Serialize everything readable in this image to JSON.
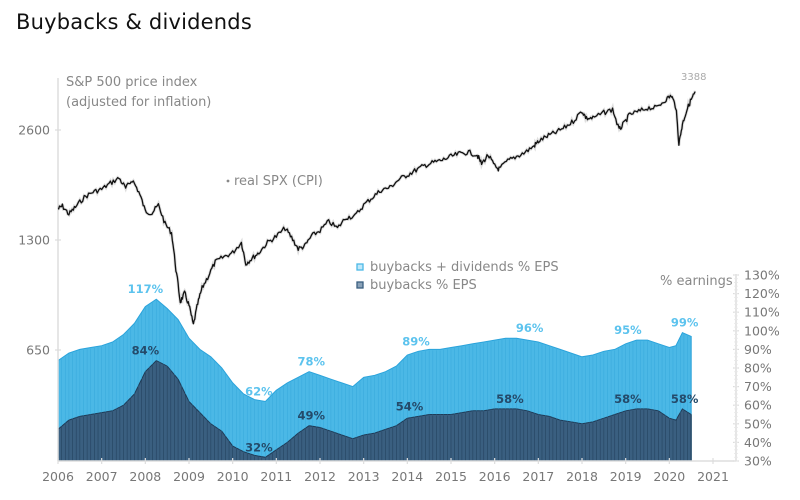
{
  "page": {
    "title": "Buybacks & dividends"
  },
  "colors": {
    "light_area": "#4bb8e6",
    "light_area_stroke": "#2aa3db",
    "dark_area": "#3a5f80",
    "dark_area_stroke": "#1f3b57",
    "line": "#111111",
    "axis": "#dddddd",
    "text": "#777777",
    "label_light": "#5cc3ee",
    "label_dark": "#244a6a"
  },
  "chart_data": {
    "type": "area",
    "title": "Buybacks & dividends",
    "x_ticks": [
      "2006",
      "2007",
      "2008",
      "2009",
      "2010",
      "2011",
      "2012",
      "2013",
      "2014",
      "2015",
      "2016",
      "2017",
      "2018",
      "2019",
      "2020",
      "2021"
    ],
    "xlim": [
      2006,
      2021
    ],
    "left_axis": {
      "label_lines": [
        "S&P 500 price index",
        "(adjusted for inflation)"
      ],
      "scale": "log",
      "ticks": [
        "2600",
        "1300",
        "650"
      ],
      "tick_values": [
        2600,
        1300,
        650
      ]
    },
    "right_axis": {
      "label": "% earnings",
      "ticks": [
        "130%",
        "120%",
        "110%",
        "100%",
        "90%",
        "80%",
        "70%",
        "60%",
        "50%",
        "40%",
        "30%"
      ],
      "ylim": [
        30,
        130
      ]
    },
    "legend": {
      "placement": "center",
      "items": [
        {
          "name": "buybacks + dividends % EPS",
          "color": "#4bb8e6"
        },
        {
          "name": "buybacks % EPS",
          "color": "#3a5f80"
        }
      ]
    },
    "line_label": "real SPX (CPI)",
    "line_end_annotation": "3388",
    "series": [
      {
        "name": "buybacks + dividends % EPS",
        "axis": "right",
        "x": [
          2006.0,
          2006.25,
          2006.5,
          2006.75,
          2007.0,
          2007.25,
          2007.5,
          2007.75,
          2008.0,
          2008.25,
          2008.5,
          2008.75,
          2009.0,
          2009.25,
          2009.5,
          2009.75,
          2010.0,
          2010.25,
          2010.5,
          2010.75,
          2011.0,
          2011.25,
          2011.5,
          2011.75,
          2012.0,
          2012.25,
          2012.5,
          2012.75,
          2013.0,
          2013.25,
          2013.5,
          2013.75,
          2014.0,
          2014.25,
          2014.5,
          2014.75,
          2015.0,
          2015.25,
          2015.5,
          2015.75,
          2016.0,
          2016.25,
          2016.5,
          2016.75,
          2017.0,
          2017.25,
          2017.5,
          2017.75,
          2018.0,
          2018.25,
          2018.5,
          2018.75,
          2019.0,
          2019.25,
          2019.5,
          2019.75,
          2020.0,
          2020.15,
          2020.3,
          2020.5
        ],
        "values": [
          84,
          88,
          90,
          91,
          92,
          94,
          98,
          104,
          113,
          117,
          112,
          106,
          96,
          90,
          86,
          80,
          72,
          66,
          63,
          62,
          68,
          72,
          75,
          78,
          76,
          74,
          72,
          70,
          75,
          76,
          78,
          81,
          87,
          89,
          90,
          90,
          91,
          92,
          93,
          94,
          95,
          96,
          96,
          95,
          94,
          92,
          90,
          88,
          86,
          87,
          89,
          90,
          93,
          95,
          95,
          93,
          91,
          92,
          99,
          97
        ]
      },
      {
        "name": "buybacks % EPS",
        "axis": "right",
        "x": [
          2006.0,
          2006.25,
          2006.5,
          2006.75,
          2007.0,
          2007.25,
          2007.5,
          2007.75,
          2008.0,
          2008.25,
          2008.5,
          2008.75,
          2009.0,
          2009.25,
          2009.5,
          2009.75,
          2010.0,
          2010.25,
          2010.5,
          2010.75,
          2011.0,
          2011.25,
          2011.5,
          2011.75,
          2012.0,
          2012.25,
          2012.5,
          2012.75,
          2013.0,
          2013.25,
          2013.5,
          2013.75,
          2014.0,
          2014.25,
          2014.5,
          2014.75,
          2015.0,
          2015.25,
          2015.5,
          2015.75,
          2016.0,
          2016.25,
          2016.5,
          2016.75,
          2017.0,
          2017.25,
          2017.5,
          2017.75,
          2018.0,
          2018.25,
          2018.5,
          2018.75,
          2019.0,
          2019.25,
          2019.5,
          2019.75,
          2020.0,
          2020.15,
          2020.3,
          2020.5
        ],
        "values": [
          47,
          52,
          54,
          55,
          56,
          57,
          60,
          66,
          78,
          84,
          81,
          74,
          62,
          56,
          50,
          46,
          38,
          35,
          33,
          32,
          36,
          40,
          45,
          49,
          48,
          46,
          44,
          42,
          44,
          45,
          47,
          49,
          53,
          54,
          55,
          55,
          55,
          56,
          57,
          57,
          58,
          58,
          58,
          57,
          55,
          54,
          52,
          51,
          50,
          51,
          53,
          55,
          57,
          58,
          58,
          57,
          53,
          52,
          58,
          55
        ]
      },
      {
        "name": "real SPX (CPI)",
        "axis": "left",
        "x": [
          2006.0,
          2006.1,
          2006.25,
          2006.4,
          2006.6,
          2006.8,
          2007.0,
          2007.2,
          2007.4,
          2007.55,
          2007.7,
          2007.85,
          2008.0,
          2008.15,
          2008.3,
          2008.45,
          2008.6,
          2008.7,
          2008.8,
          2008.9,
          2009.0,
          2009.1,
          2009.2,
          2009.3,
          2009.45,
          2009.6,
          2009.8,
          2010.0,
          2010.2,
          2010.3,
          2010.45,
          2010.6,
          2010.8,
          2011.0,
          2011.2,
          2011.35,
          2011.5,
          2011.65,
          2011.8,
          2012.0,
          2012.2,
          2012.4,
          2012.6,
          2012.8,
          2013.0,
          2013.2,
          2013.4,
          2013.6,
          2013.8,
          2014.0,
          2014.2,
          2014.4,
          2014.6,
          2014.8,
          2015.0,
          2015.2,
          2015.4,
          2015.6,
          2015.7,
          2015.85,
          2016.0,
          2016.1,
          2016.3,
          2016.5,
          2016.7,
          2016.9,
          2017.0,
          2017.2,
          2017.4,
          2017.6,
          2017.8,
          2018.0,
          2018.1,
          2018.25,
          2018.5,
          2018.7,
          2018.85,
          2018.95,
          2019.1,
          2019.3,
          2019.5,
          2019.7,
          2019.9,
          2020.05,
          2020.15,
          2020.22,
          2020.3,
          2020.4,
          2020.5,
          2020.6
        ],
        "values": [
          1580,
          1610,
          1530,
          1600,
          1700,
          1760,
          1790,
          1860,
          1920,
          1800,
          1900,
          1760,
          1560,
          1540,
          1620,
          1440,
          1360,
          1080,
          880,
          930,
          860,
          760,
          870,
          960,
          1040,
          1130,
          1170,
          1200,
          1280,
          1120,
          1160,
          1200,
          1280,
          1330,
          1400,
          1320,
          1230,
          1250,
          1330,
          1380,
          1460,
          1400,
          1500,
          1510,
          1620,
          1700,
          1780,
          1810,
          1900,
          1960,
          2020,
          2080,
          2120,
          2150,
          2200,
          2240,
          2260,
          2220,
          2100,
          2220,
          2070,
          2030,
          2140,
          2200,
          2260,
          2350,
          2420,
          2500,
          2560,
          2640,
          2750,
          2930,
          2800,
          2800,
          2900,
          2960,
          2600,
          2700,
          2870,
          2920,
          2990,
          2990,
          3140,
          3230,
          3000,
          2380,
          2700,
          2950,
          3150,
          3300
        ]
      }
    ],
    "annotations": [
      {
        "series": "buybacks + dividends % EPS",
        "x": 2008.0,
        "value": 117,
        "text": "117%"
      },
      {
        "series": "buybacks + dividends % EPS",
        "x": 2010.6,
        "value": 62,
        "text": "62%"
      },
      {
        "series": "buybacks + dividends % EPS",
        "x": 2011.8,
        "value": 78,
        "text": "78%"
      },
      {
        "series": "buybacks + dividends % EPS",
        "x": 2014.2,
        "value": 89,
        "text": "89%"
      },
      {
        "series": "buybacks + dividends % EPS",
        "x": 2016.8,
        "value": 96,
        "text": "96%"
      },
      {
        "series": "buybacks + dividends % EPS",
        "x": 2019.05,
        "value": 95,
        "text": "95%"
      },
      {
        "series": "buybacks + dividends % EPS",
        "x": 2020.35,
        "value": 99,
        "text": "99%"
      },
      {
        "series": "buybacks % EPS",
        "x": 2008.0,
        "value": 84,
        "text": "84%"
      },
      {
        "series": "buybacks % EPS",
        "x": 2010.6,
        "value": 32,
        "text": "32%"
      },
      {
        "series": "buybacks % EPS",
        "x": 2011.8,
        "value": 49,
        "text": "49%"
      },
      {
        "series": "buybacks % EPS",
        "x": 2014.05,
        "value": 54,
        "text": "54%"
      },
      {
        "series": "buybacks % EPS",
        "x": 2016.35,
        "value": 58,
        "text": "58%"
      },
      {
        "series": "buybacks % EPS",
        "x": 2019.05,
        "value": 58,
        "text": "58%"
      },
      {
        "series": "buybacks % EPS",
        "x": 2020.35,
        "value": 58,
        "text": "58%"
      }
    ]
  }
}
